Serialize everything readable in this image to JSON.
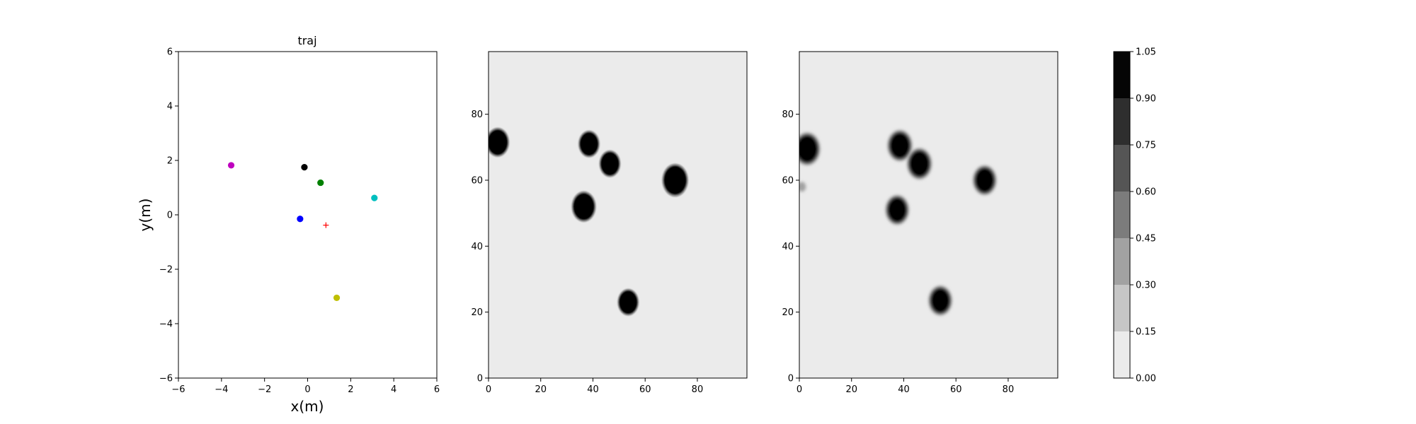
{
  "chart_data": [
    {
      "type": "scatter",
      "title": "traj",
      "xlabel": "x(m)",
      "ylabel": "y(m)",
      "xlim": [
        -6,
        6
      ],
      "ylim": [
        -6,
        6
      ],
      "xticks": [
        -6,
        -4,
        -2,
        0,
        2,
        4,
        6
      ],
      "yticks": [
        -6,
        -4,
        -2,
        0,
        2,
        4,
        6
      ],
      "xtick_labels": [
        "−6",
        "−4",
        "−2",
        "0",
        "2",
        "4",
        "6"
      ],
      "ytick_labels": [
        "−6",
        "−4",
        "−2",
        "0",
        "2",
        "4",
        "6"
      ],
      "grid": false,
      "points": [
        {
          "x": -3.55,
          "y": 1.82,
          "color": "#bf00bf",
          "marker": "circle"
        },
        {
          "x": -0.15,
          "y": 1.75,
          "color": "#000000",
          "marker": "circle"
        },
        {
          "x": 0.6,
          "y": 1.18,
          "color": "#008000",
          "marker": "circle"
        },
        {
          "x": 3.1,
          "y": 0.62,
          "color": "#00bfbf",
          "marker": "circle"
        },
        {
          "x": -0.35,
          "y": -0.15,
          "color": "#0000ff",
          "marker": "circle"
        },
        {
          "x": 1.35,
          "y": -3.05,
          "color": "#bfbf00",
          "marker": "circle"
        },
        {
          "x": 0.85,
          "y": -0.38,
          "color": "#ff0000",
          "marker": "plus"
        }
      ]
    },
    {
      "type": "heatmap",
      "xlim": [
        0,
        99
      ],
      "ylim": [
        0,
        99
      ],
      "xticks": [
        0,
        20,
        40,
        60,
        80
      ],
      "yticks": [
        0,
        20,
        40,
        60,
        80
      ],
      "background_value": 0.0,
      "blobs": [
        {
          "x": 3.5,
          "y": 71.5,
          "r": 3.8,
          "value": 1.0
        },
        {
          "x": 38.5,
          "y": 71,
          "r": 3.5,
          "value": 1.0
        },
        {
          "x": 46.5,
          "y": 65,
          "r": 3.5,
          "value": 1.0
        },
        {
          "x": 36.5,
          "y": 52,
          "r": 4,
          "value": 1.0
        },
        {
          "x": 71.5,
          "y": 60,
          "r": 4.3,
          "value": 1.0
        },
        {
          "x": 53.5,
          "y": 23,
          "r": 3.5,
          "value": 1.0
        }
      ]
    },
    {
      "type": "heatmap",
      "xlim": [
        0,
        99
      ],
      "ylim": [
        0,
        99
      ],
      "xticks": [
        0,
        20,
        40,
        60,
        80
      ],
      "yticks": [
        0,
        20,
        40,
        60,
        80
      ],
      "background_value": 0.0,
      "blobs": [
        {
          "x": 3,
          "y": 69.5,
          "r": 4.2,
          "value": 1.0
        },
        {
          "x": 38.5,
          "y": 70.5,
          "r": 4,
          "value": 1.0
        },
        {
          "x": 46,
          "y": 65,
          "r": 4,
          "value": 1.0
        },
        {
          "x": 37.5,
          "y": 51,
          "r": 3.8,
          "value": 1.0
        },
        {
          "x": 71,
          "y": 60,
          "r": 3.8,
          "value": 1.0
        },
        {
          "x": 54,
          "y": 23.5,
          "r": 3.8,
          "value": 1.0
        },
        {
          "x": 1,
          "y": 58,
          "r": 1.5,
          "value": 0.3
        }
      ]
    }
  ],
  "colorbar": {
    "levels": [
      0.0,
      0.15,
      0.3,
      0.45,
      0.6,
      0.75,
      0.9,
      1.05
    ],
    "labels": [
      "0.00",
      "0.15",
      "0.30",
      "0.45",
      "0.60",
      "0.75",
      "0.90",
      "1.05"
    ],
    "colors": [
      "#ebebeb",
      "#c6c6c6",
      "#a2a2a2",
      "#7c7c7c",
      "#555555",
      "#2e2e2e",
      "#050505"
    ]
  }
}
